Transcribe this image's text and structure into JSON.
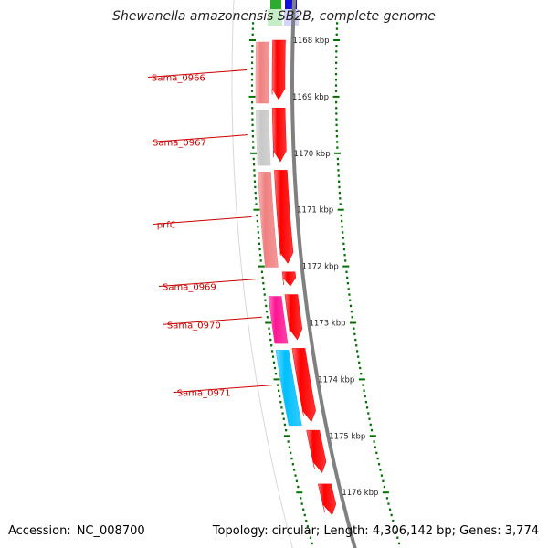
{
  "header": {
    "title": "Shewanella amazonensis SB2B, complete genome"
  },
  "footer": {
    "accession_label": "Accession:",
    "accession": "NC_008700",
    "topology_label": "Topology:",
    "topology": "circular",
    "length_label": "Length:",
    "length": "4,306,142 bp",
    "genes_label": "Genes:",
    "genes": "3,774"
  },
  "ruler": {
    "unit": "kbp",
    "ticks": [
      {
        "label": "1168 kbp",
        "kbp": 1168
      },
      {
        "label": "1169 kbp",
        "kbp": 1169
      },
      {
        "label": "1170 kbp",
        "kbp": 1170
      },
      {
        "label": "1171 kbp",
        "kbp": 1171
      },
      {
        "label": "1172 kbp",
        "kbp": 1172
      },
      {
        "label": "1173 kbp",
        "kbp": 1173
      },
      {
        "label": "1174 kbp",
        "kbp": 1174
      },
      {
        "label": "1175 kbp",
        "kbp": 1175
      },
      {
        "label": "1176 kbp",
        "kbp": 1176
      }
    ]
  },
  "features": [
    {
      "start": 1168.0,
      "end": 1169.05,
      "strand": "-",
      "gene_color": "#ff0000",
      "cds_color": "#f08080",
      "label": "Sama_0966"
    },
    {
      "start": 1169.2,
      "end": 1170.15,
      "strand": "-",
      "gene_color": "#ff0000",
      "cds_color": "#c8c8c8",
      "label": "Sama_0967"
    },
    {
      "start": 1170.3,
      "end": 1171.95,
      "strand": "-",
      "gene_color": "#ff0000",
      "cds_color": "#f08080",
      "label": "prfC"
    },
    {
      "start": 1172.1,
      "end": 1172.35,
      "strand": "-",
      "gene_color": "#ff0000",
      "cds_color": null,
      "label": "Sama_0969"
    },
    {
      "start": 1172.5,
      "end": 1173.3,
      "strand": "-",
      "gene_color": "#ff0000",
      "cds_color": "#ff1493",
      "label": "Sama_0970"
    },
    {
      "start": 1173.45,
      "end": 1174.75,
      "strand": "-",
      "gene_color": "#ff0000",
      "cds_color": "#00bfff",
      "label": "Sama_0971"
    },
    {
      "start": 1174.9,
      "end": 1175.65,
      "strand": "-",
      "gene_color": "#ff0000",
      "cds_color": null,
      "label": ""
    },
    {
      "start": 1175.85,
      "end": 1176.4,
      "strand": "-",
      "gene_color": "#ff0000",
      "cds_color": null,
      "label": ""
    }
  ],
  "colors": {
    "backbone": "#808080",
    "tick": "#007000",
    "label": "#cc0000",
    "guide": "#d8d8d8"
  }
}
